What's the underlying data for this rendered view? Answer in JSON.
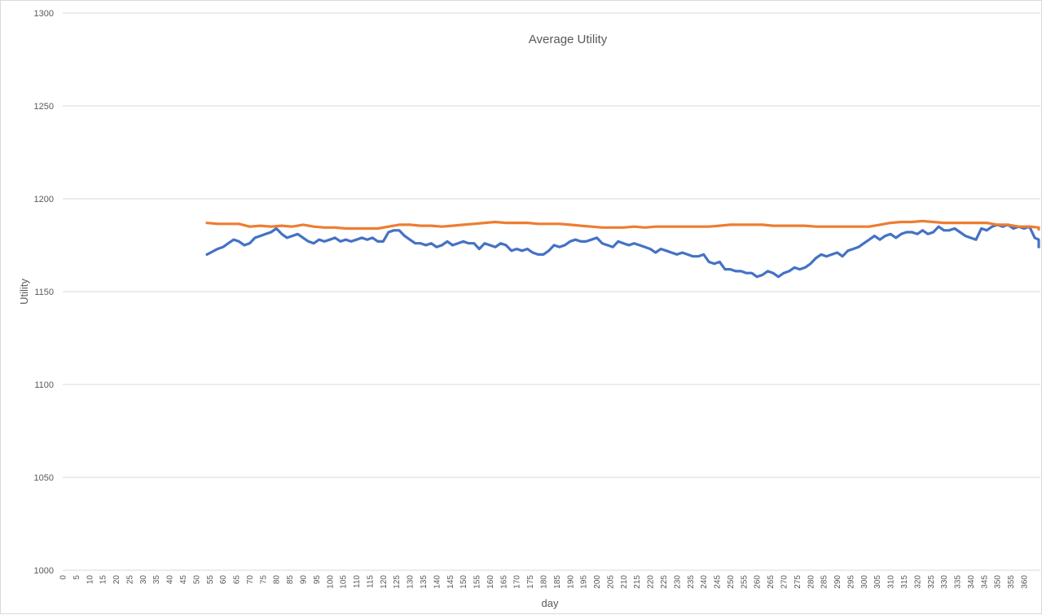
{
  "chart_data": {
    "type": "line",
    "title": "Average Utility",
    "xlabel": "day",
    "ylabel": "Utility",
    "ylim": [
      1000,
      1300
    ],
    "yticks": [
      1000,
      1050,
      1100,
      1150,
      1200,
      1250,
      1300
    ],
    "xlim": [
      0,
      364
    ],
    "xticks": [
      0,
      5,
      10,
      15,
      20,
      25,
      30,
      35,
      40,
      45,
      50,
      55,
      60,
      65,
      70,
      75,
      80,
      85,
      90,
      95,
      100,
      105,
      110,
      115,
      120,
      125,
      130,
      135,
      140,
      145,
      150,
      155,
      160,
      165,
      170,
      175,
      180,
      185,
      190,
      195,
      200,
      205,
      210,
      215,
      220,
      225,
      230,
      235,
      240,
      245,
      250,
      255,
      260,
      265,
      270,
      275,
      280,
      285,
      290,
      295,
      300,
      305,
      310,
      315,
      320,
      325,
      330,
      335,
      340,
      345,
      350,
      355,
      360
    ],
    "grid": true,
    "legend": "none",
    "colors": {
      "series_1": "#4472c4",
      "series_2": "#ed7d31",
      "grid": "#d9d9d9",
      "text": "#595959"
    },
    "series": [
      {
        "color": "#4472c4",
        "points": [
          [
            54,
            1170
          ],
          [
            56,
            1171.5
          ],
          [
            58,
            1173
          ],
          [
            60,
            1174
          ],
          [
            62,
            1176
          ],
          [
            64,
            1178
          ],
          [
            66,
            1177
          ],
          [
            68,
            1175
          ],
          [
            70,
            1176
          ],
          [
            72,
            1179
          ],
          [
            74,
            1180
          ],
          [
            76,
            1181
          ],
          [
            78,
            1182
          ],
          [
            80,
            1184
          ],
          [
            82,
            1181
          ],
          [
            84,
            1179
          ],
          [
            86,
            1180
          ],
          [
            88,
            1181
          ],
          [
            90,
            1179
          ],
          [
            92,
            1177
          ],
          [
            94,
            1176
          ],
          [
            96,
            1178
          ],
          [
            98,
            1177
          ],
          [
            100,
            1178
          ],
          [
            102,
            1179
          ],
          [
            104,
            1177
          ],
          [
            106,
            1178
          ],
          [
            108,
            1177
          ],
          [
            110,
            1178
          ],
          [
            112,
            1179
          ],
          [
            114,
            1178
          ],
          [
            116,
            1179
          ],
          [
            118,
            1177
          ],
          [
            120,
            1177
          ],
          [
            122,
            1182
          ],
          [
            124,
            1183
          ],
          [
            126,
            1183
          ],
          [
            128,
            1180
          ],
          [
            130,
            1178
          ],
          [
            132,
            1176
          ],
          [
            134,
            1176
          ],
          [
            136,
            1175
          ],
          [
            138,
            1176
          ],
          [
            140,
            1174
          ],
          [
            142,
            1175
          ],
          [
            144,
            1177
          ],
          [
            146,
            1175
          ],
          [
            148,
            1176
          ],
          [
            150,
            1177
          ],
          [
            152,
            1176
          ],
          [
            154,
            1176
          ],
          [
            156,
            1173
          ],
          [
            158,
            1176
          ],
          [
            160,
            1175
          ],
          [
            162,
            1174
          ],
          [
            164,
            1176
          ],
          [
            166,
            1175
          ],
          [
            168,
            1172
          ],
          [
            170,
            1173
          ],
          [
            172,
            1172
          ],
          [
            174,
            1173
          ],
          [
            176,
            1171
          ],
          [
            178,
            1170
          ],
          [
            180,
            1170
          ],
          [
            182,
            1172
          ],
          [
            184,
            1175
          ],
          [
            186,
            1174
          ],
          [
            188,
            1175
          ],
          [
            190,
            1177
          ],
          [
            192,
            1178
          ],
          [
            194,
            1177
          ],
          [
            196,
            1177
          ],
          [
            198,
            1178
          ],
          [
            200,
            1179
          ],
          [
            202,
            1176
          ],
          [
            204,
            1175
          ],
          [
            206,
            1174
          ],
          [
            208,
            1177
          ],
          [
            210,
            1176
          ],
          [
            212,
            1175
          ],
          [
            214,
            1176
          ],
          [
            216,
            1175
          ],
          [
            218,
            1174
          ],
          [
            220,
            1173
          ],
          [
            222,
            1171
          ],
          [
            224,
            1173
          ],
          [
            226,
            1172
          ],
          [
            228,
            1171
          ],
          [
            230,
            1170
          ],
          [
            232,
            1171
          ],
          [
            234,
            1170
          ],
          [
            236,
            1169
          ],
          [
            238,
            1169
          ],
          [
            240,
            1170
          ],
          [
            242,
            1166
          ],
          [
            244,
            1165
          ],
          [
            246,
            1166
          ],
          [
            248,
            1162
          ],
          [
            250,
            1162
          ],
          [
            252,
            1161
          ],
          [
            254,
            1161
          ],
          [
            256,
            1160
          ],
          [
            258,
            1160
          ],
          [
            260,
            1158
          ],
          [
            262,
            1159
          ],
          [
            264,
            1161
          ],
          [
            266,
            1160
          ],
          [
            268,
            1158
          ],
          [
            270,
            1160
          ],
          [
            272,
            1161
          ],
          [
            274,
            1163
          ],
          [
            276,
            1162
          ],
          [
            278,
            1163
          ],
          [
            280,
            1165
          ],
          [
            282,
            1168
          ],
          [
            284,
            1170
          ],
          [
            286,
            1169
          ],
          [
            288,
            1170
          ],
          [
            290,
            1171
          ],
          [
            292,
            1169
          ],
          [
            294,
            1172
          ],
          [
            296,
            1173
          ],
          [
            298,
            1174
          ],
          [
            300,
            1176
          ],
          [
            302,
            1178
          ],
          [
            304,
            1180
          ],
          [
            306,
            1178
          ],
          [
            308,
            1180
          ],
          [
            310,
            1181
          ],
          [
            312,
            1179
          ],
          [
            314,
            1181
          ],
          [
            316,
            1182
          ],
          [
            318,
            1182
          ],
          [
            320,
            1181
          ],
          [
            322,
            1183
          ],
          [
            324,
            1181
          ],
          [
            326,
            1182
          ],
          [
            328,
            1185
          ],
          [
            330,
            1183
          ],
          [
            332,
            1183
          ],
          [
            334,
            1184
          ],
          [
            336,
            1182
          ],
          [
            338,
            1180
          ],
          [
            340,
            1179
          ],
          [
            342,
            1178
          ],
          [
            344,
            1184
          ],
          [
            346,
            1183
          ],
          [
            348,
            1185
          ],
          [
            350,
            1186
          ],
          [
            352,
            1185
          ],
          [
            354,
            1186
          ],
          [
            356,
            1184
          ],
          [
            358,
            1185
          ],
          [
            360,
            1184
          ],
          [
            362,
            1185
          ],
          [
            364,
            1179
          ],
          [
            366,
            1178
          ],
          [
            368,
            1176
          ],
          [
            370,
            1174
          ],
          [
            372,
            1174
          ],
          [
            374,
            1176
          ],
          [
            376,
            1177
          ]
        ]
      },
      {
        "color": "#ed7d31",
        "points": [
          [
            54,
            1187
          ],
          [
            58,
            1186.5
          ],
          [
            62,
            1186.5
          ],
          [
            66,
            1186.5
          ],
          [
            70,
            1185
          ],
          [
            74,
            1185.5
          ],
          [
            78,
            1185
          ],
          [
            82,
            1185.5
          ],
          [
            86,
            1185
          ],
          [
            90,
            1186
          ],
          [
            94,
            1185
          ],
          [
            98,
            1184.5
          ],
          [
            102,
            1184.5
          ],
          [
            106,
            1184
          ],
          [
            110,
            1184
          ],
          [
            114,
            1184
          ],
          [
            118,
            1184
          ],
          [
            122,
            1185
          ],
          [
            126,
            1186
          ],
          [
            130,
            1186
          ],
          [
            134,
            1185.5
          ],
          [
            138,
            1185.5
          ],
          [
            142,
            1185
          ],
          [
            146,
            1185.5
          ],
          [
            150,
            1186
          ],
          [
            154,
            1186.5
          ],
          [
            158,
            1187
          ],
          [
            162,
            1187.5
          ],
          [
            166,
            1187
          ],
          [
            170,
            1187
          ],
          [
            174,
            1187
          ],
          [
            178,
            1186.5
          ],
          [
            182,
            1186.5
          ],
          [
            186,
            1186.5
          ],
          [
            190,
            1186
          ],
          [
            194,
            1185.5
          ],
          [
            198,
            1185
          ],
          [
            202,
            1184.5
          ],
          [
            206,
            1184.5
          ],
          [
            210,
            1184.5
          ],
          [
            214,
            1185
          ],
          [
            218,
            1184.5
          ],
          [
            222,
            1185
          ],
          [
            226,
            1185
          ],
          [
            230,
            1185
          ],
          [
            234,
            1185
          ],
          [
            238,
            1185
          ],
          [
            242,
            1185
          ],
          [
            246,
            1185.5
          ],
          [
            250,
            1186
          ],
          [
            254,
            1186
          ],
          [
            258,
            1186
          ],
          [
            262,
            1186
          ],
          [
            266,
            1185.5
          ],
          [
            270,
            1185.5
          ],
          [
            274,
            1185.5
          ],
          [
            278,
            1185.5
          ],
          [
            282,
            1185
          ],
          [
            286,
            1185
          ],
          [
            290,
            1185
          ],
          [
            294,
            1185
          ],
          [
            298,
            1185
          ],
          [
            302,
            1185
          ],
          [
            306,
            1186
          ],
          [
            310,
            1187
          ],
          [
            314,
            1187.5
          ],
          [
            318,
            1187.5
          ],
          [
            322,
            1188
          ],
          [
            326,
            1187.5
          ],
          [
            330,
            1187
          ],
          [
            334,
            1187
          ],
          [
            338,
            1187
          ],
          [
            342,
            1187
          ],
          [
            346,
            1187
          ],
          [
            350,
            1186
          ],
          [
            354,
            1186
          ],
          [
            358,
            1185
          ],
          [
            362,
            1185
          ],
          [
            366,
            1184.5
          ],
          [
            370,
            1184
          ],
          [
            374,
            1184
          ],
          [
            376,
            1183.5
          ]
        ]
      }
    ]
  }
}
